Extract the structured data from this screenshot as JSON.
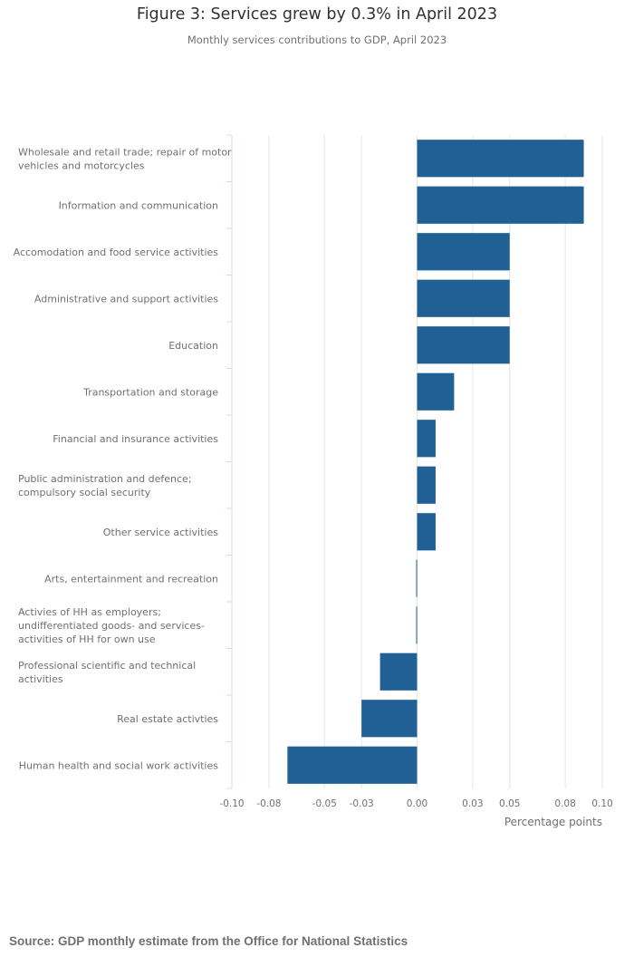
{
  "chart_data": {
    "type": "bar",
    "orientation": "horizontal",
    "title": "Figure 3: Services grew by 0.3% in April 2023",
    "subtitle": "Monthly services contributions to GDP, April 2023",
    "xlabel": "Percentage points",
    "ylabel": "",
    "xlim": [
      -0.1,
      0.1
    ],
    "xticks": [
      -0.1,
      -0.08,
      -0.05,
      -0.03,
      0.0,
      0.03,
      0.05,
      0.08,
      0.1
    ],
    "xtick_labels": [
      "-0.10",
      "-0.08",
      "-0.05",
      "-0.03",
      "0.00",
      "0.03",
      "0.05",
      "0.08",
      "0.10"
    ],
    "grid": true,
    "bar_color": "#206095",
    "categories": [
      [
        "Wholesale and retail trade; repair of motor",
        "vehicles and motorcycles"
      ],
      [
        "Information and communication"
      ],
      [
        "Accomodation and food service activities"
      ],
      [
        "Administrative and support activities"
      ],
      [
        "Education"
      ],
      [
        "Transportation and storage"
      ],
      [
        "Financial and insurance activities"
      ],
      [
        "Public administration and defence;",
        "compulsory social security"
      ],
      [
        "Other service activities"
      ],
      [
        "Arts, entertainment and recreation"
      ],
      [
        "Activies of HH as employers;",
        "undifferentiated goods- and services-",
        "activities of HH for own use"
      ],
      [
        "Professional scientific and technical",
        "activities"
      ],
      [
        "Real estate activties"
      ],
      [
        "Human health and social work activities"
      ]
    ],
    "values": [
      0.09,
      0.09,
      0.05,
      0.05,
      0.05,
      0.02,
      0.01,
      0.01,
      0.01,
      0.0,
      0.0,
      -0.02,
      -0.03,
      -0.07
    ]
  },
  "source": "Source: GDP monthly estimate from the Office for National Statistics"
}
